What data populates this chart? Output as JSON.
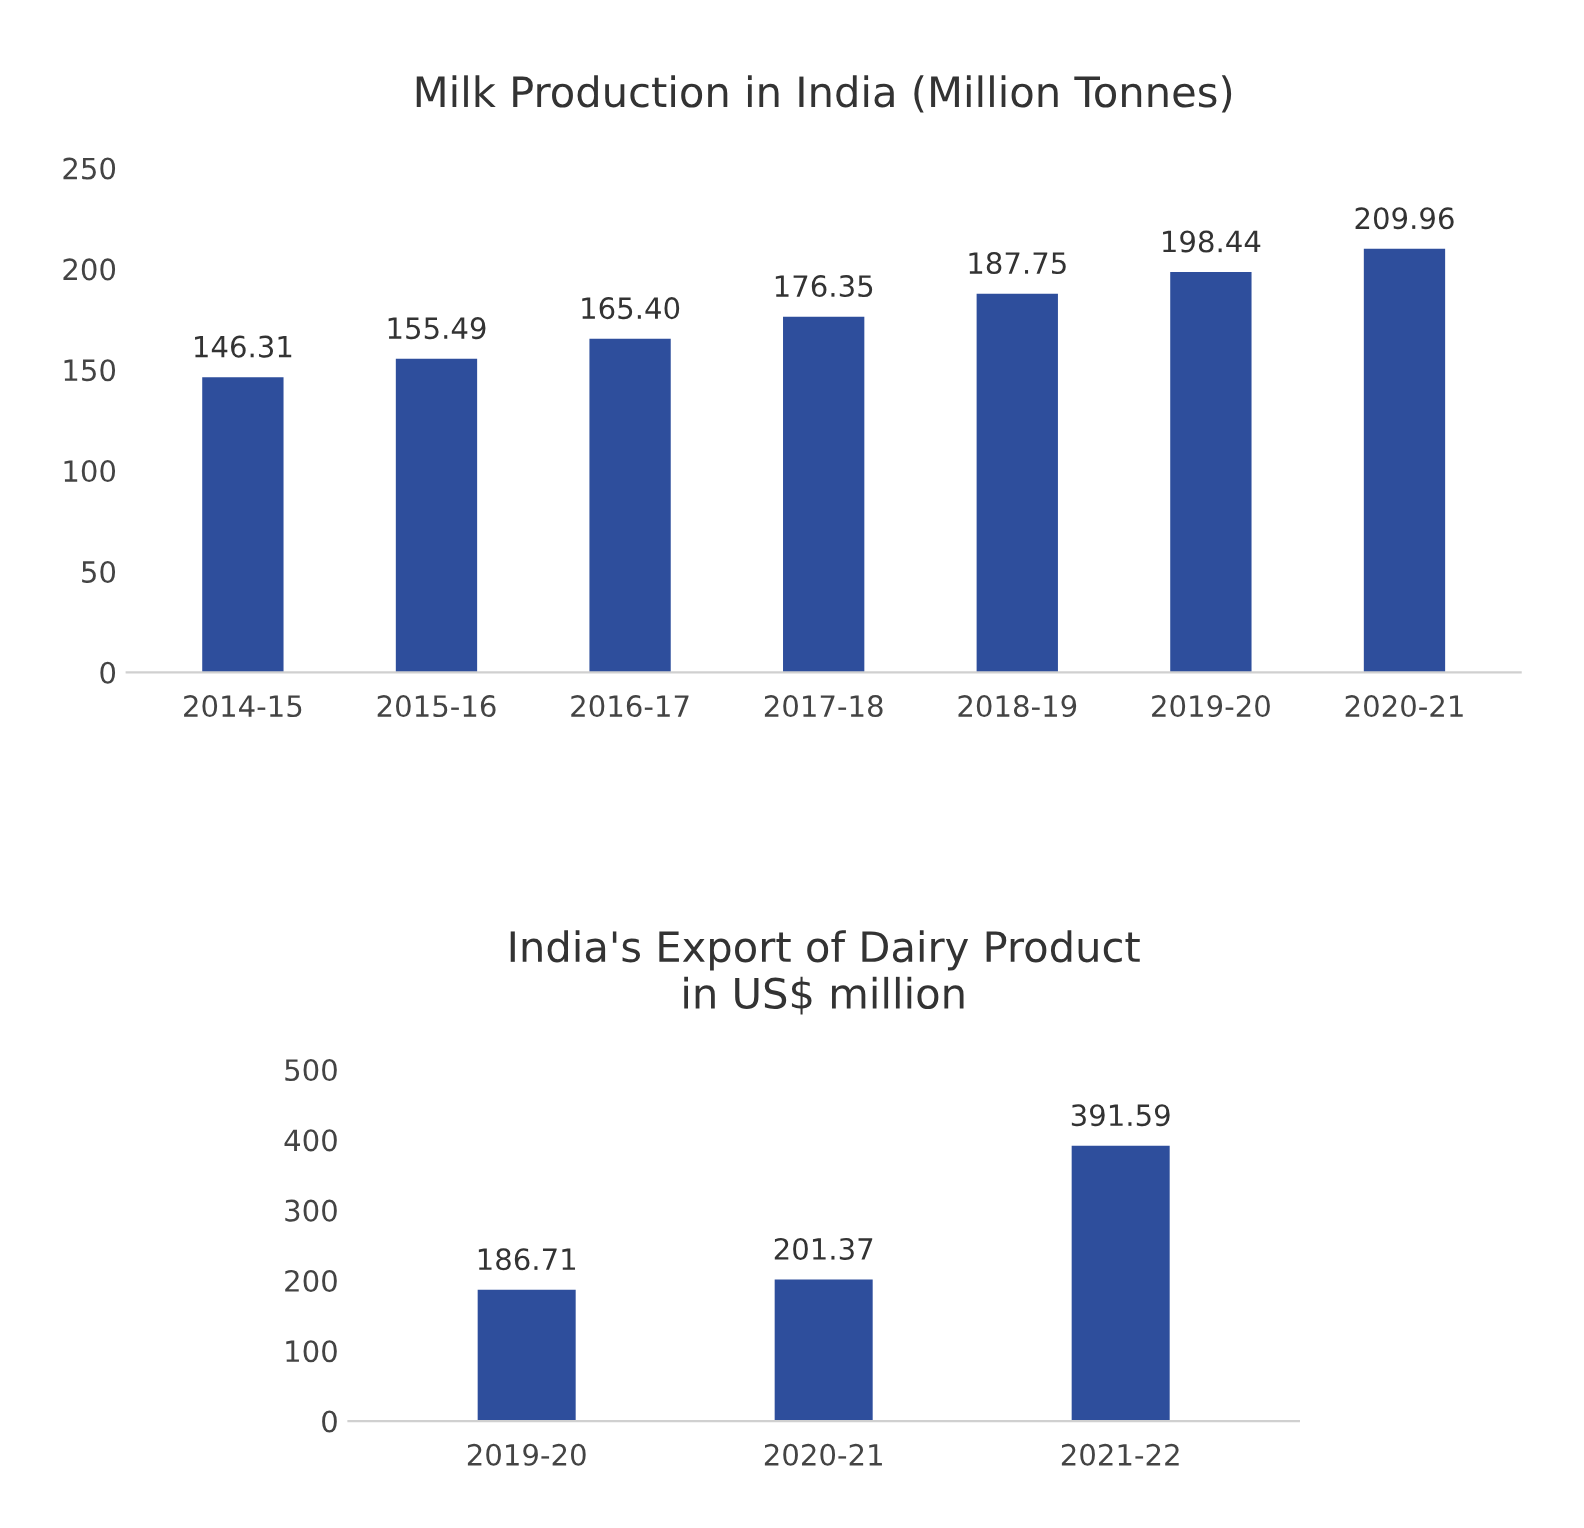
{
  "chart_data": [
    {
      "type": "bar",
      "title": "Milk Production in India (Million Tonnes)",
      "categories": [
        "2014-15",
        "2015-16",
        "2016-17",
        "2017-18",
        "2018-19",
        "2019-20",
        "2020-21"
      ],
      "series": [
        {
          "color": "#2e4e9c",
          "values": [
            146.31,
            155.49,
            165.4,
            176.35,
            187.75,
            198.44,
            209.96
          ],
          "value_labels": [
            "146.31",
            "155.49",
            "165.40",
            "176.35",
            "187.75",
            "198.44",
            "209.96"
          ]
        }
      ],
      "ylim": [
        0,
        250
      ],
      "yticks": [
        0,
        50,
        100,
        150,
        200,
        250
      ],
      "grid": false,
      "legend": false
    },
    {
      "type": "bar",
      "title": "India's Export of Dairy Product\nin US$ million",
      "categories": [
        "2019-20",
        "2020-21",
        "2021-22"
      ],
      "series": [
        {
          "color": "#2e4e9c",
          "values": [
            186.71,
            201.37,
            391.59
          ],
          "value_labels": [
            "186.71",
            "201.37",
            "391.59"
          ]
        }
      ],
      "ylim": [
        0,
        500
      ],
      "yticks": [
        0,
        100,
        200,
        300,
        400,
        500
      ],
      "grid": false,
      "legend": false
    }
  ]
}
